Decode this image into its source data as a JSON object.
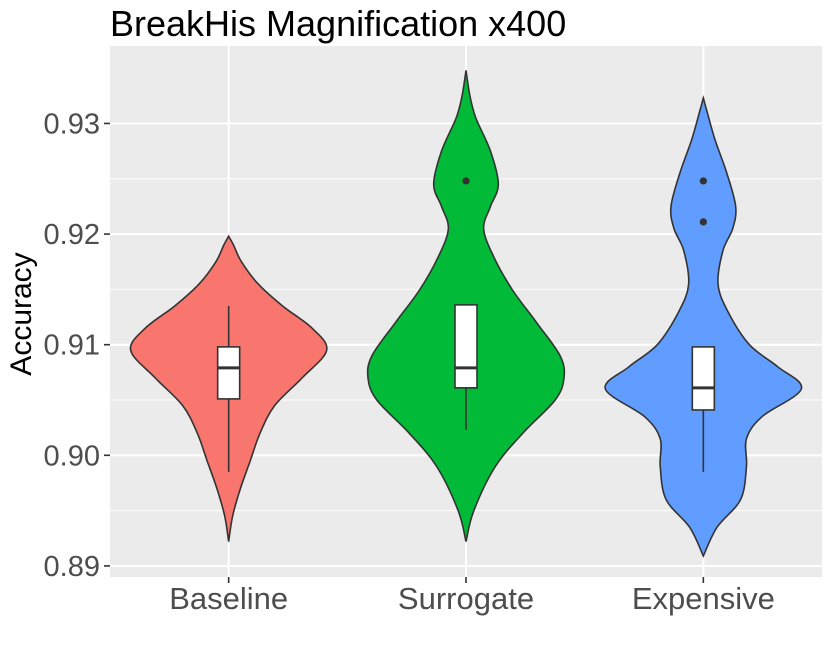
{
  "chart_data": {
    "type": "violin",
    "title": "BreakHis Magnification x400",
    "xlabel": "",
    "ylabel": "Accuracy",
    "ylim": [
      0.889,
      0.937
    ],
    "yticks": [
      0.89,
      0.9,
      0.91,
      0.92,
      0.93
    ],
    "ytick_labels": [
      "0.89",
      "0.90",
      "0.91",
      "0.92",
      "0.93"
    ],
    "categories": [
      "Baseline",
      "Surrogate",
      "Expensive"
    ],
    "grid": true,
    "legend": "none",
    "series": [
      {
        "category": "Baseline",
        "color": "#F8766D",
        "violin_min": 0.8922,
        "violin_max": 0.9198,
        "density_profile": [
          [
            0.8922,
            0.0
          ],
          [
            0.8945,
            0.04
          ],
          [
            0.897,
            0.12
          ],
          [
            0.8995,
            0.22
          ],
          [
            0.902,
            0.32
          ],
          [
            0.9045,
            0.47
          ],
          [
            0.907,
            0.75
          ],
          [
            0.9095,
            1.0
          ],
          [
            0.9115,
            0.85
          ],
          [
            0.9135,
            0.55
          ],
          [
            0.9155,
            0.3
          ],
          [
            0.9175,
            0.13
          ],
          [
            0.919,
            0.05
          ],
          [
            0.9198,
            0.0
          ]
        ],
        "box": {
          "whisker_low": 0.8985,
          "q1": 0.9051,
          "median": 0.9079,
          "q3": 0.9098,
          "whisker_high": 0.9135
        },
        "outliers": []
      },
      {
        "category": "Surrogate",
        "color": "#00BA38",
        "violin_min": 0.8922,
        "violin_max": 0.9348,
        "density_profile": [
          [
            0.8922,
            0.0
          ],
          [
            0.895,
            0.08
          ],
          [
            0.899,
            0.3
          ],
          [
            0.902,
            0.58
          ],
          [
            0.905,
            0.91
          ],
          [
            0.907,
            1.0
          ],
          [
            0.909,
            0.96
          ],
          [
            0.912,
            0.72
          ],
          [
            0.915,
            0.47
          ],
          [
            0.918,
            0.28
          ],
          [
            0.9205,
            0.18
          ],
          [
            0.9225,
            0.25
          ],
          [
            0.9245,
            0.33
          ],
          [
            0.9275,
            0.25
          ],
          [
            0.9305,
            0.1
          ],
          [
            0.9325,
            0.04
          ],
          [
            0.9348,
            0.0
          ]
        ],
        "box": {
          "whisker_low": 0.9023,
          "q1": 0.9061,
          "median": 0.9079,
          "q3": 0.9136,
          "whisker_high": 0.9136
        },
        "outliers": [
          0.9248
        ]
      },
      {
        "category": "Expensive",
        "color": "#619CFF",
        "violin_min": 0.8909,
        "violin_max": 0.9323,
        "density_profile": [
          [
            0.8909,
            0.0
          ],
          [
            0.8935,
            0.14
          ],
          [
            0.896,
            0.38
          ],
          [
            0.899,
            0.44
          ],
          [
            0.9015,
            0.44
          ],
          [
            0.9035,
            0.6
          ],
          [
            0.906,
            1.0
          ],
          [
            0.908,
            0.76
          ],
          [
            0.91,
            0.47
          ],
          [
            0.913,
            0.25
          ],
          [
            0.9155,
            0.15
          ],
          [
            0.9185,
            0.2
          ],
          [
            0.9205,
            0.3
          ],
          [
            0.9225,
            0.33
          ],
          [
            0.9255,
            0.24
          ],
          [
            0.9285,
            0.12
          ],
          [
            0.931,
            0.04
          ],
          [
            0.9323,
            0.0
          ]
        ],
        "box": {
          "whisker_low": 0.8985,
          "q1": 0.9041,
          "median": 0.9061,
          "q3": 0.9098,
          "whisker_high": 0.9098
        },
        "outliers": [
          0.9248,
          0.9211
        ]
      }
    ]
  },
  "colors": {
    "panel": "#EBEBEB",
    "grid_major": "#FFFFFF",
    "outline": "#333333",
    "tick_text": "#4D4D4D"
  }
}
